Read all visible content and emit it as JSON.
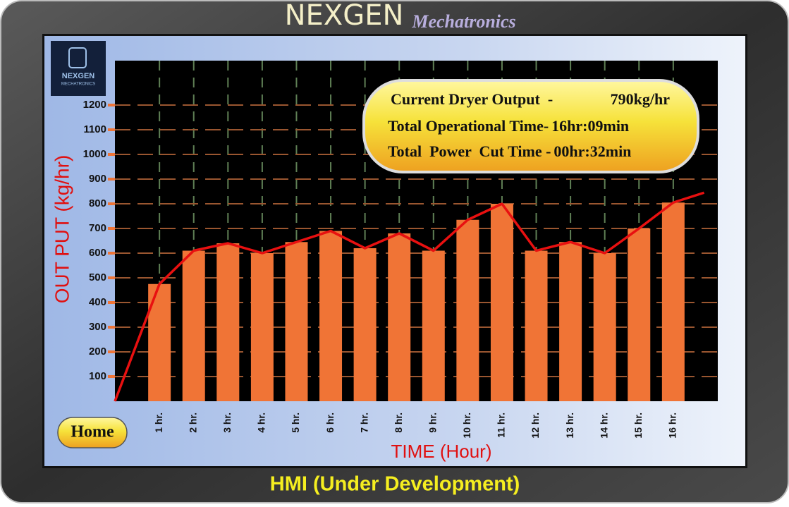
{
  "header": {
    "brand": "NEXGEN",
    "subtitle": "Mechatronics"
  },
  "logo": {
    "name": "NEXGEN",
    "tagline": "MECHATRONICS"
  },
  "chart_data": {
    "type": "bar",
    "ylabel": "OUT PUT (kg/hr)",
    "xlabel": "TIME (Hour)",
    "categories": [
      "1 hr.",
      "2 hr.",
      "3 hr.",
      "4 hr.",
      "5 hr.",
      "6 hr.",
      "7 hr.",
      "8 hr.",
      "9 hr.",
      "10 hr.",
      "11 hr.",
      "12 hr.",
      "13 hr.",
      "14 hr.",
      "15 hr.",
      "16 hr."
    ],
    "xlim": [
      -0.3,
      17.3
    ],
    "ylim": [
      0,
      1380
    ],
    "yticks": [
      100,
      200,
      300,
      400,
      500,
      600,
      700,
      800,
      900,
      1000,
      1100,
      1200
    ],
    "grid": true,
    "series": [
      {
        "type": "bar",
        "color": "#f07436",
        "values": [
          475,
          610,
          640,
          600,
          645,
          690,
          620,
          680,
          610,
          735,
          800,
          610,
          645,
          600,
          700,
          805
        ]
      },
      {
        "type": "line",
        "color": "#e81010",
        "x": [
          -0.3,
          1,
          2,
          3,
          4,
          5,
          6,
          7,
          8,
          9,
          10,
          11,
          12,
          13,
          14,
          15,
          16,
          16.9
        ],
        "values": [
          0,
          475,
          610,
          640,
          600,
          645,
          690,
          620,
          680,
          610,
          735,
          800,
          610,
          645,
          600,
          700,
          805,
          845
        ]
      }
    ]
  },
  "info_panel": {
    "rows": [
      {
        "label": "Current Dryer Output  -",
        "value": "790kg/hr"
      },
      {
        "label": "Total Operational Time-",
        "value": "16hr:09min"
      },
      {
        "label": "Total  Power  Cut Time -",
        "value": "00hr:32min"
      }
    ]
  },
  "button": {
    "label": "Home"
  },
  "footer": {
    "text": "HMI (Under Development)"
  }
}
